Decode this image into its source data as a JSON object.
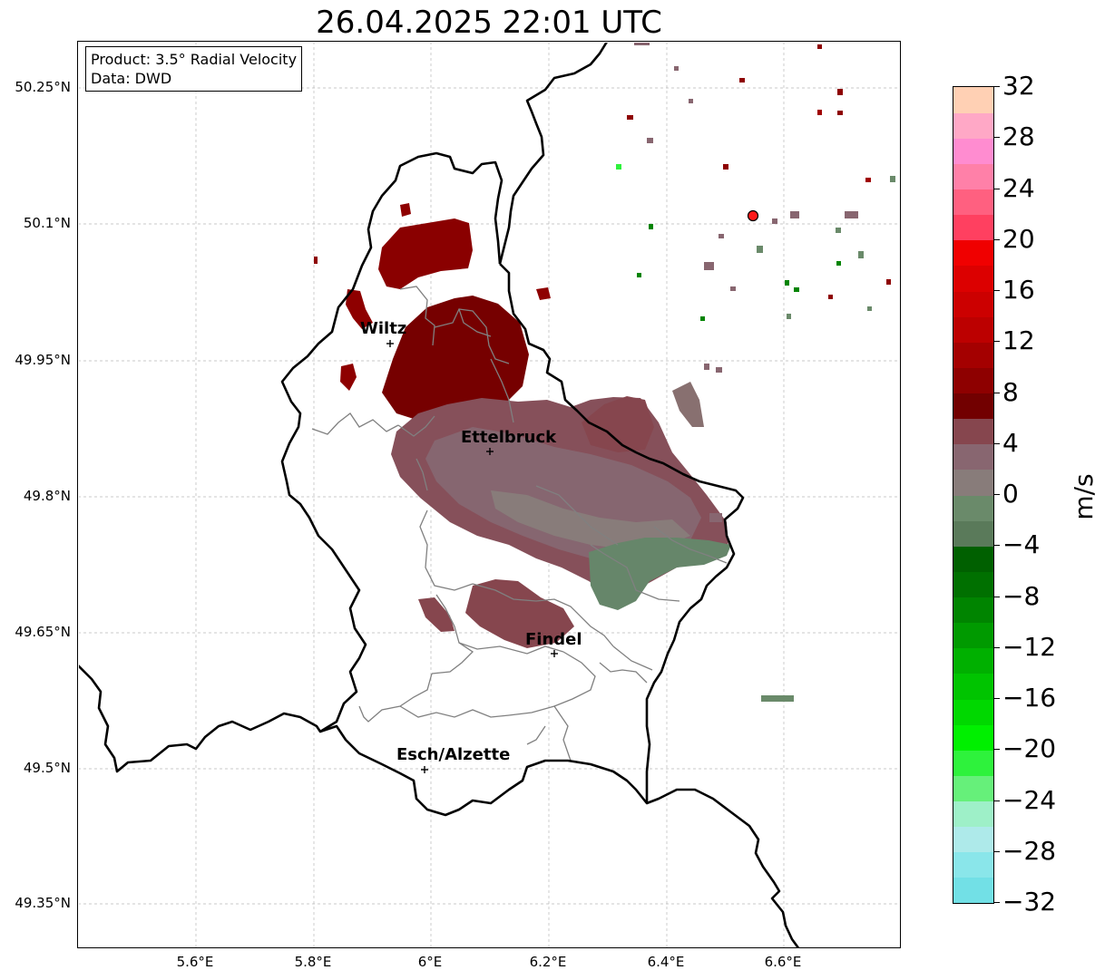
{
  "title": "26.04.2025 22:01 UTC",
  "info": {
    "product": "Product: 3.5° Radial Velocity",
    "data": "Data: DWD"
  },
  "lat_labels": [
    "50.25°N",
    "50.1°N",
    "49.95°N",
    "49.8°N",
    "49.65°N",
    "49.5°N",
    "49.35°N"
  ],
  "lon_labels": [
    "5.6°E",
    "5.8°E",
    "6°E",
    "6.2°E",
    "6.4°E",
    "6.6°E"
  ],
  "cities": [
    {
      "name": "Wiltz",
      "lon": 5.93,
      "lat": 49.966
    },
    {
      "name": "Ettelbruck",
      "lon": 6.1,
      "lat": 49.847
    },
    {
      "name": "Findel",
      "lon": 6.21,
      "lat": 49.627
    },
    {
      "name": "Esch/Alzette",
      "lon": 5.99,
      "lat": 49.499
    }
  ],
  "radar_site": {
    "lon": 6.548,
    "lat": 50.111
  },
  "colorbar": {
    "unit": "m/s",
    "min": -32,
    "max": 32,
    "tick_labels": [
      "32",
      "28",
      "24",
      "20",
      "16",
      "12",
      "8",
      "4",
      "0",
      "−4",
      "−8",
      "−12",
      "−16",
      "−20",
      "−24",
      "−28",
      "−32"
    ],
    "colors": [
      "#72e0e6",
      "#8ae6ea",
      "#aeeaea",
      "#9ef0c8",
      "#66f07a",
      "#2ef23c",
      "#00f000",
      "#00d800",
      "#00c400",
      "#00b000",
      "#009a00",
      "#008400",
      "#007000",
      "#006000",
      "#5a7a5a",
      "#6a8a6a",
      "#887c7a",
      "#886670",
      "#86464e",
      "#720000",
      "#8e0000",
      "#a40000",
      "#bc0000",
      "#cc0000",
      "#dc0000",
      "#f00000",
      "#ff4060",
      "#ff6080",
      "#ff80a8",
      "#ff8cd0",
      "#ffa8c6",
      "#ffd0b4"
    ]
  },
  "colors": {
    "outbound_dark": "#7a0000",
    "outbound_mid": "#86464e",
    "neutral": "#886670",
    "inbound_weak": "#6a8a6a",
    "inbound_green": "#008400",
    "border_national": "#000000",
    "border_district": "#808080"
  }
}
